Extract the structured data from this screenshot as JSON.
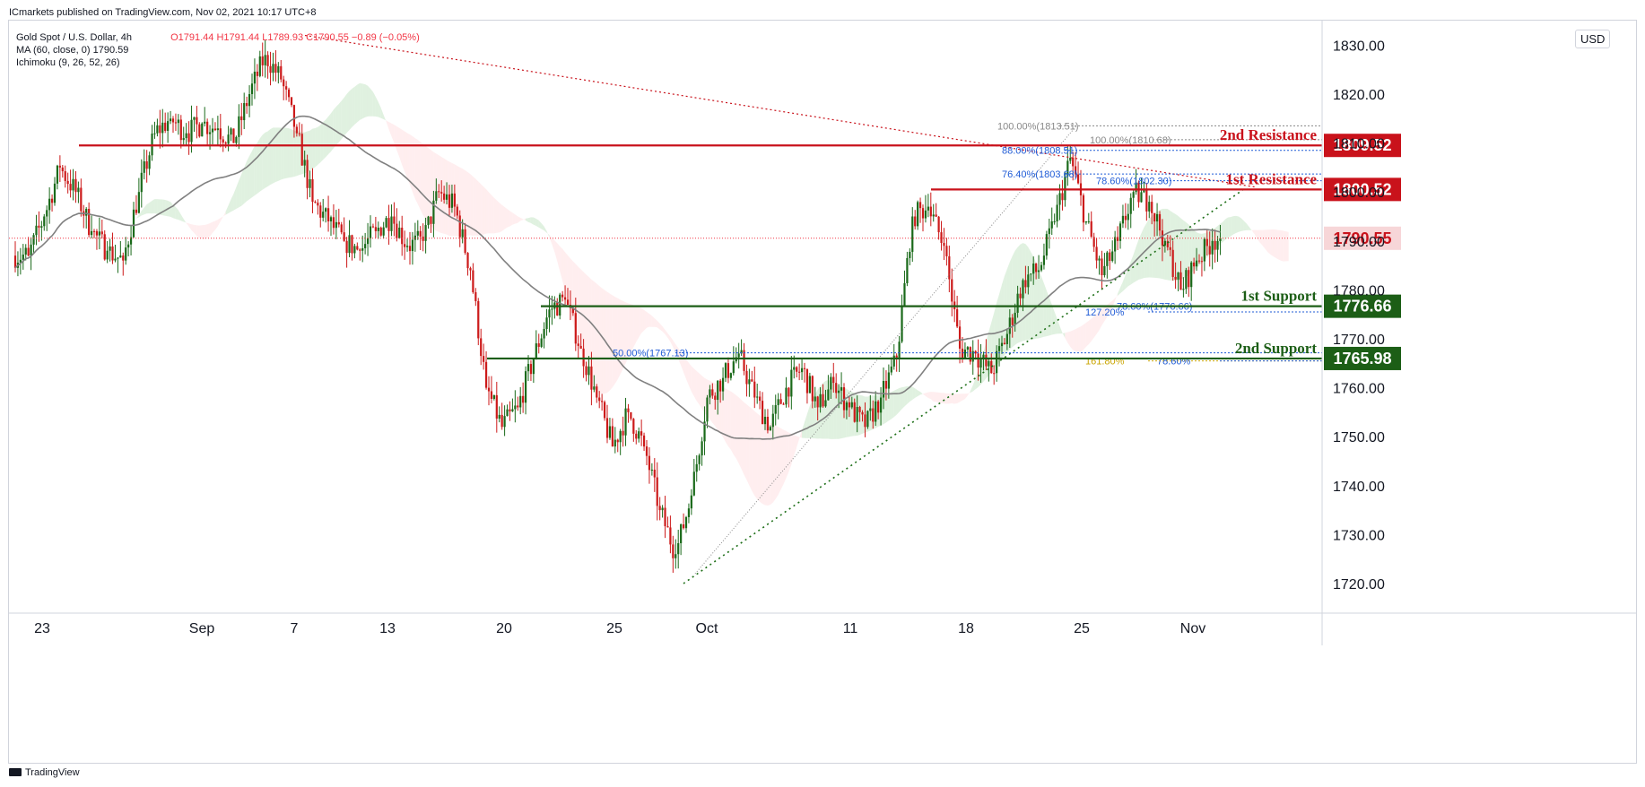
{
  "header": {
    "publisher": "ICmarkets published on TradingView.com, Nov 02, 2021 10:17 UTC+8"
  },
  "legend": {
    "symbol": "Gold Spot / U.S. Dollar, 4h",
    "ohlc": "O1791.44 H1791.44 L1789.93 C1790.55 −0.89 (−0.05%)",
    "ma": "MA (60, close, 0) 1790.59",
    "ichimoku": "Ichimoku (9, 26, 52, 26)"
  },
  "currency": "USD",
  "footer": {
    "brand": "TradingView"
  },
  "colors": {
    "resistance": "#c9121b",
    "support": "#1c5e16",
    "price": "#f23645",
    "bull": "#1a6a1a",
    "bear": "#cc1a1a",
    "ma": "#808080",
    "cloud_green": "#a5d6a7",
    "cloud_red": "#ffcdd2",
    "fib": "#1f5bd6"
  },
  "chart_data": {
    "type": "candlestick",
    "symbol": "Gold Spot / U.S. Dollar",
    "timeframe": "4h",
    "ylim": [
      1712,
      1832
    ],
    "y_ticks": [
      1720,
      1730,
      1740,
      1750,
      1760,
      1770,
      1780,
      1790,
      1800,
      1810,
      1820,
      1830
    ],
    "y_tick_labels": [
      "1720.00",
      "1730.00",
      "1740.00",
      "1750.00",
      "1760.00",
      "1770.00",
      "1780.00",
      "1790.00",
      "1800.00",
      "1810.00",
      "1820.00",
      "1830.00"
    ],
    "x_tick_labels": [
      "23",
      "Sep",
      "7",
      "13",
      "20",
      "25",
      "Oct",
      "11",
      "18",
      "25",
      "Nov"
    ],
    "grid": false,
    "last_price": 1790.55,
    "ma_60_last": 1790.59,
    "close_path": [
      {
        "d": 0,
        "c": 1787
      },
      {
        "d": 1,
        "c": 1795
      },
      {
        "d": 2,
        "c": 1805
      },
      {
        "d": 3,
        "c": 1800
      },
      {
        "d": 4,
        "c": 1792
      },
      {
        "d": 5,
        "c": 1788
      },
      {
        "d": 6,
        "c": 1786
      },
      {
        "d": 7,
        "c": 1800
      },
      {
        "d": 8,
        "c": 1812
      },
      {
        "d": 9,
        "c": 1815
      },
      {
        "d": 10,
        "c": 1812
      },
      {
        "d": 11,
        "c": 1814
      },
      {
        "d": 12,
        "c": 1813
      },
      {
        "d": 13,
        "c": 1810
      },
      {
        "d": 14,
        "c": 1820
      },
      {
        "d": 15,
        "c": 1828
      },
      {
        "d": 16,
        "c": 1823
      },
      {
        "d": 17,
        "c": 1812
      },
      {
        "d": 18,
        "c": 1798
      },
      {
        "d": 19,
        "c": 1794
      },
      {
        "d": 20,
        "c": 1790
      },
      {
        "d": 21,
        "c": 1788
      },
      {
        "d": 22,
        "c": 1792
      },
      {
        "d": 23,
        "c": 1795
      },
      {
        "d": 24,
        "c": 1789
      },
      {
        "d": 25,
        "c": 1790
      },
      {
        "d": 26,
        "c": 1800
      },
      {
        "d": 27,
        "c": 1797
      },
      {
        "d": 28,
        "c": 1784
      },
      {
        "d": 29,
        "c": 1760
      },
      {
        "d": 30,
        "c": 1752
      },
      {
        "d": 31,
        "c": 1756
      },
      {
        "d": 32,
        "c": 1766
      },
      {
        "d": 33,
        "c": 1776
      },
      {
        "d": 34,
        "c": 1778
      },
      {
        "d": 35,
        "c": 1768
      },
      {
        "d": 36,
        "c": 1758
      },
      {
        "d": 37,
        "c": 1748
      },
      {
        "d": 38,
        "c": 1755
      },
      {
        "d": 39,
        "c": 1748
      },
      {
        "d": 40,
        "c": 1735
      },
      {
        "d": 41,
        "c": 1726
      },
      {
        "d": 42,
        "c": 1738
      },
      {
        "d": 43,
        "c": 1758
      },
      {
        "d": 44,
        "c": 1762
      },
      {
        "d": 45,
        "c": 1767
      },
      {
        "d": 46,
        "c": 1758
      },
      {
        "d": 47,
        "c": 1752
      },
      {
        "d": 48,
        "c": 1760
      },
      {
        "d": 49,
        "c": 1764
      },
      {
        "d": 50,
        "c": 1756
      },
      {
        "d": 51,
        "c": 1761
      },
      {
        "d": 52,
        "c": 1756
      },
      {
        "d": 53,
        "c": 1752
      },
      {
        "d": 54,
        "c": 1758
      },
      {
        "d": 55,
        "c": 1766
      },
      {
        "d": 56,
        "c": 1795
      },
      {
        "d": 57,
        "c": 1797
      },
      {
        "d": 58,
        "c": 1789
      },
      {
        "d": 59,
        "c": 1768
      },
      {
        "d": 60,
        "c": 1767
      },
      {
        "d": 61,
        "c": 1763
      },
      {
        "d": 62,
        "c": 1771
      },
      {
        "d": 63,
        "c": 1782
      },
      {
        "d": 64,
        "c": 1784
      },
      {
        "d": 65,
        "c": 1794
      },
      {
        "d": 66,
        "c": 1807
      },
      {
        "d": 67,
        "c": 1794
      },
      {
        "d": 68,
        "c": 1783
      },
      {
        "d": 69,
        "c": 1790
      },
      {
        "d": 70,
        "c": 1800
      },
      {
        "d": 71,
        "c": 1798
      },
      {
        "d": 72,
        "c": 1790
      },
      {
        "d": 73,
        "c": 1780
      },
      {
        "d": 74,
        "c": 1786
      },
      {
        "d": 75,
        "c": 1790
      },
      {
        "d": 76,
        "c": 1790.55
      }
    ],
    "levels": [
      {
        "label": "2nd Resistance",
        "price": 1809.52,
        "kind": "resistance"
      },
      {
        "label": "1st Resistance",
        "price": 1800.52,
        "kind": "resistance"
      },
      {
        "label": "1st Support",
        "price": 1776.66,
        "kind": "support"
      },
      {
        "label": "2nd Support",
        "price": 1765.98,
        "kind": "support"
      }
    ],
    "fib_labels": [
      {
        "text": "100.00%(1813.51)",
        "price": 1813.51
      },
      {
        "text": "88.00%(1808.51)",
        "price": 1808.51
      },
      {
        "text": "76.40%(1803.68)",
        "price": 1803.68
      },
      {
        "text": "100.00%(1810.68)",
        "price": 1810.68
      },
      {
        "text": "78.60%(1802.30)",
        "price": 1802.3
      },
      {
        "text": "50.00%(1767.13)",
        "price": 1767.13
      },
      {
        "text": "127.20%",
        "price": 1775.5
      },
      {
        "text": "78.60%(1776.66)",
        "price": 1776.66
      },
      {
        "text": "161.80%",
        "price": 1765.5
      },
      {
        "text": "78.60%",
        "price": 1765.5
      }
    ]
  }
}
